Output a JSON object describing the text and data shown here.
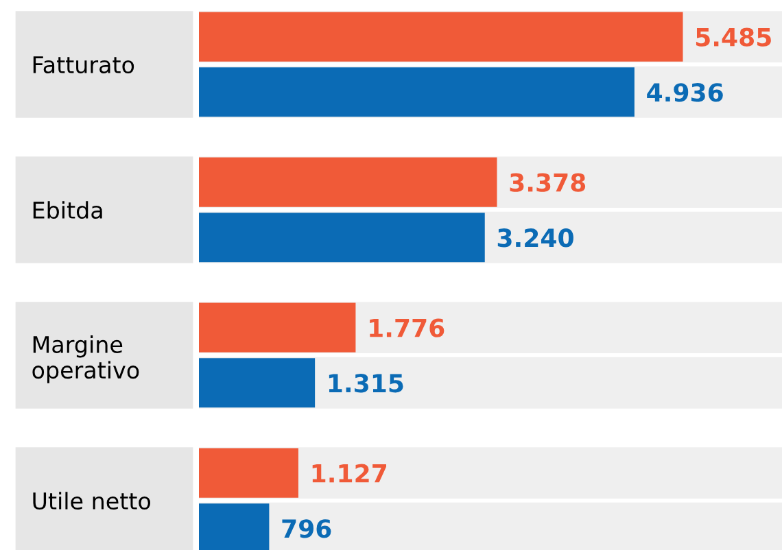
{
  "chart_data": {
    "type": "bar",
    "orientation": "horizontal",
    "categories": [
      "Fatturato",
      "Ebitda",
      "Margine\noperativo",
      "Utile netto"
    ],
    "series": [
      {
        "color": "#f05a38",
        "values": [
          5485,
          3378,
          1776,
          1127
        ],
        "value_labels": [
          "5.485",
          "3.378",
          "1.776",
          "1.127"
        ]
      },
      {
        "color": "#0b6bb5",
        "values": [
          4936,
          3240,
          1315,
          796
        ],
        "value_labels": [
          "4.936",
          "3.240",
          "1.315",
          "796"
        ]
      }
    ]
  }
}
